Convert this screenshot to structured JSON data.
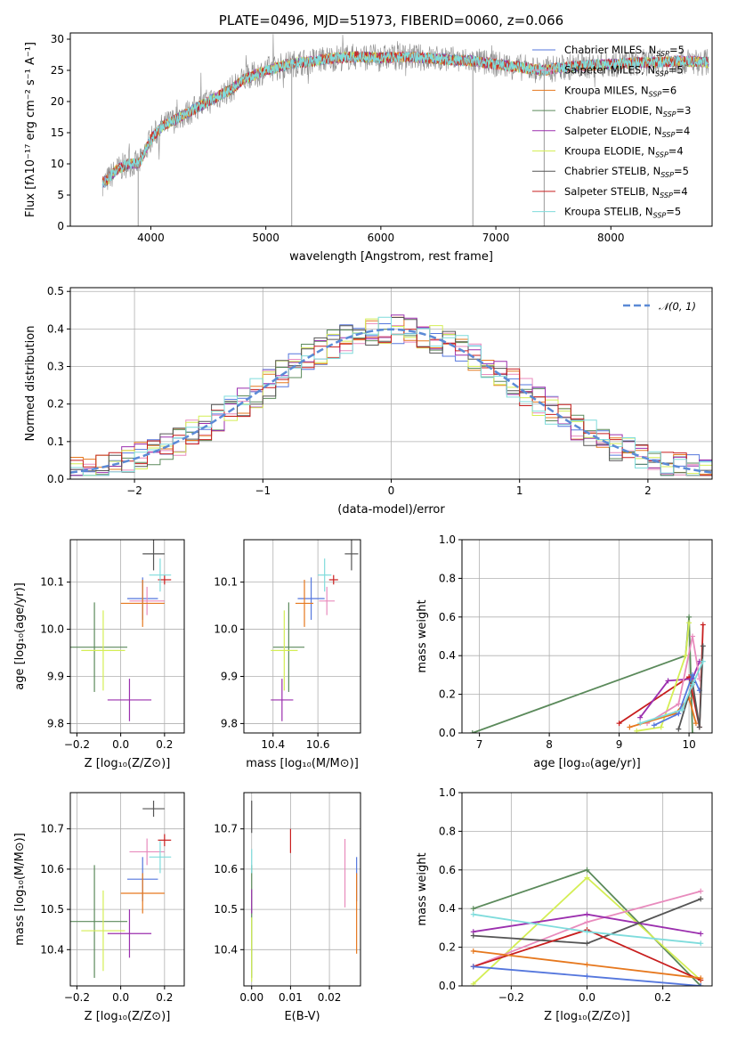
{
  "colors": {
    "Chabrier MILES": "#5577dd",
    "Salpeter MILES": "#e88bbd",
    "Kroupa MILES": "#e6781e",
    "Chabrier ELODIE": "#5b8a5b",
    "Salpeter ELODIE": "#9b2fae",
    "Kroupa ELODIE": "#d4ee55",
    "Chabrier STELIB": "#555555",
    "Salpeter STELIB": "#c81e1e",
    "Kroupa STELIB": "#7fdcdc",
    "gauss": "#5b8ad6"
  },
  "chart_data": [
    {
      "id": "spectrum",
      "type": "line",
      "title": "PLATE=0496, MJD=51973, FIBERID=0060, z=0.066",
      "xlabel": "wavelength [Angstrom, rest frame]",
      "ylabel": "Flux [fλ10⁻¹⁷ erg cm⁻² s⁻¹ A⁻¹]",
      "xlim": [
        3300,
        8880
      ],
      "ylim": [
        0,
        31
      ],
      "xticks": [
        4000,
        5000,
        6000,
        7000,
        8000
      ],
      "yticks": [
        0,
        5,
        10,
        15,
        20,
        25,
        30
      ],
      "grid": false,
      "legend_position": "top-right",
      "legend": [
        {
          "series": "Chabrier MILES",
          "text": "Chabrier MILES, N",
          "sub": "SSP",
          "tail": "=5"
        },
        {
          "series": "Salpeter MILES",
          "text": "Salpeter MILES, N",
          "sub": "SSP",
          "tail": "=5"
        },
        {
          "series": "Kroupa MILES",
          "text": "Kroupa MILES, N",
          "sub": "SSP",
          "tail": "=6"
        },
        {
          "series": "Chabrier ELODIE",
          "text": "Chabrier ELODIE, N",
          "sub": "SSP",
          "tail": "=3"
        },
        {
          "series": "Salpeter ELODIE",
          "text": "Salpeter ELODIE, N",
          "sub": "SSP",
          "tail": "=4"
        },
        {
          "series": "Kroupa ELODIE",
          "text": "Kroupa ELODIE, N",
          "sub": "SSP",
          "tail": "=4"
        },
        {
          "series": "Chabrier STELIB",
          "text": "Chabrier STELIB, N",
          "sub": "SSP",
          "tail": "=5"
        },
        {
          "series": "Salpeter STELIB",
          "text": "Salpeter STELIB, N",
          "sub": "SSP",
          "tail": "=4"
        },
        {
          "series": "Kroupa STELIB",
          "text": "Kroupa STELIB, N",
          "sub": "SSP",
          "tail": "=5"
        }
      ],
      "continuum": {
        "x": [
          3600,
          3700,
          3800,
          3900,
          4000,
          4100,
          4200,
          4300,
          4400,
          4500,
          4600,
          4700,
          4800,
          5000,
          5200,
          5400,
          5600,
          5800,
          6000,
          6200,
          6400,
          6600,
          6800,
          7000,
          7200,
          7400,
          7600,
          7800,
          8000,
          8200,
          8400,
          8600,
          8800
        ],
        "y": [
          7,
          9,
          10,
          10,
          14,
          16,
          17,
          18,
          19,
          20,
          21,
          22,
          23.5,
          25,
          26,
          26.5,
          27,
          27.2,
          27,
          27.2,
          27,
          26.7,
          26.5,
          26,
          25.5,
          25,
          25.5,
          25.8,
          26,
          26.2,
          26.3,
          26.5,
          26.3
        ]
      },
      "spikes": [
        {
          "x": 3890,
          "y": 0
        },
        {
          "x": 5225,
          "y": 0
        },
        {
          "x": 6800,
          "y": 0
        },
        {
          "x": 7420,
          "y": 0
        }
      ]
    },
    {
      "id": "residuals",
      "type": "histogram",
      "xlabel": "(data-model)/error",
      "ylabel": "Normed distribution",
      "xlim": [
        -2.5,
        2.5
      ],
      "ylim": [
        0,
        0.51
      ],
      "xticks": [
        -2,
        -1,
        0,
        1,
        2
      ],
      "xticklabels": [
        "−2",
        "−1",
        "0",
        "1",
        "2"
      ],
      "yticks": [
        0.0,
        0.1,
        0.2,
        0.3,
        0.4,
        0.5
      ],
      "grid": true,
      "legend_position": "top-right",
      "legend": [
        {
          "series": "gauss",
          "text": "𝒩(0, 1)"
        }
      ],
      "bin_width": 0.1
    },
    {
      "id": "age-vs-Z",
      "type": "scatter",
      "xlabel": "Z [log₁₀(Z/Z⊙)]",
      "ylabel": "age  [log₁₀(age/yr)]",
      "xlim": [
        -0.23,
        0.29
      ],
      "ylim": [
        9.78,
        10.19
      ],
      "xticks": [
        -0.2,
        0.0,
        0.2
      ],
      "xticklabels": [
        "−0.2",
        "0.0",
        "0.2"
      ],
      "yticks": [
        9.8,
        9.9,
        10.0,
        10.1
      ],
      "grid": true,
      "points": [
        {
          "series": "Chabrier MILES",
          "x": 0.1,
          "xerr": 0.07,
          "y": 10.065,
          "yerr": 0.045
        },
        {
          "series": "Salpeter MILES",
          "x": 0.12,
          "xerr": 0.08,
          "y": 10.06,
          "yerr": 0.03
        },
        {
          "series": "Kroupa MILES",
          "x": 0.1,
          "xerr": 0.1,
          "y": 10.055,
          "yerr": 0.05
        },
        {
          "series": "Chabrier ELODIE",
          "x": -0.12,
          "xerr": 0.15,
          "y": 9.962,
          "yerr": 0.095
        },
        {
          "series": "Salpeter ELODIE",
          "x": 0.04,
          "xerr": 0.1,
          "y": 9.85,
          "yerr": 0.045
        },
        {
          "series": "Kroupa ELODIE",
          "x": -0.08,
          "xerr": 0.1,
          "y": 9.955,
          "yerr": 0.085
        },
        {
          "series": "Chabrier STELIB",
          "x": 0.15,
          "xerr": 0.05,
          "y": 10.16,
          "yerr": 0.035
        },
        {
          "series": "Salpeter STELIB",
          "x": 0.2,
          "xerr": 0.03,
          "y": 10.105,
          "yerr": 0.01
        },
        {
          "series": "Kroupa STELIB",
          "x": 0.18,
          "xerr": 0.05,
          "y": 10.115,
          "yerr": 0.035
        }
      ]
    },
    {
      "id": "age-vs-mass",
      "type": "scatter",
      "xlabel": "mass [log₁₀(M/M⊙)]",
      "ylabel": "",
      "xlim": [
        10.27,
        10.79
      ],
      "ylim": [
        9.78,
        10.19
      ],
      "xticks": [
        10.4,
        10.6
      ],
      "xticklabels": [
        "10.4",
        "10.6"
      ],
      "yticks": [
        9.8,
        9.9,
        10.0,
        10.1
      ],
      "grid": true,
      "points": [
        {
          "series": "Chabrier MILES",
          "x": 10.57,
          "xerr": 0.06,
          "y": 10.065,
          "yerr": 0.045
        },
        {
          "series": "Salpeter MILES",
          "x": 10.64,
          "xerr": 0.035,
          "y": 10.06,
          "yerr": 0.03
        },
        {
          "series": "Kroupa MILES",
          "x": 10.54,
          "xerr": 0.04,
          "y": 10.055,
          "yerr": 0.05
        },
        {
          "series": "Chabrier ELODIE",
          "x": 10.47,
          "xerr": 0.07,
          "y": 9.962,
          "yerr": 0.095
        },
        {
          "series": "Salpeter ELODIE",
          "x": 10.44,
          "xerr": 0.05,
          "y": 9.85,
          "yerr": 0.045
        },
        {
          "series": "Kroupa ELODIE",
          "x": 10.45,
          "xerr": 0.06,
          "y": 9.955,
          "yerr": 0.085
        },
        {
          "series": "Chabrier STELIB",
          "x": 10.75,
          "xerr": 0.03,
          "y": 10.16,
          "yerr": 0.035
        },
        {
          "series": "Salpeter STELIB",
          "x": 10.67,
          "xerr": 0.02,
          "y": 10.105,
          "yerr": 0.01
        },
        {
          "series": "Kroupa STELIB",
          "x": 10.63,
          "xerr": 0.03,
          "y": 10.115,
          "yerr": 0.035
        }
      ]
    },
    {
      "id": "weight-vs-age",
      "type": "line",
      "xlabel": "age  [log₁₀(age/yr)]",
      "ylabel": "mass weight",
      "xlim": [
        6.75,
        10.33
      ],
      "ylim": [
        0,
        1
      ],
      "xticks": [
        7,
        8,
        9,
        10
      ],
      "yticks": [
        0.0,
        0.2,
        0.4,
        0.6,
        0.8,
        1.0
      ],
      "grid": true,
      "series": [
        {
          "name": "Chabrier ELODIE",
          "x": [
            6.9,
            9.95,
            10.0,
            10.05
          ],
          "y": [
            0.0,
            0.4,
            0.6,
            0.0
          ]
        },
        {
          "name": "Salpeter STELIB",
          "x": [
            9.0,
            10.0,
            10.15,
            10.2
          ],
          "y": [
            0.05,
            0.29,
            0.03,
            0.56
          ]
        },
        {
          "name": "Salpeter ELODIE",
          "x": [
            9.3,
            9.7,
            10.05,
            10.15
          ],
          "y": [
            0.08,
            0.27,
            0.28,
            0.37
          ]
        },
        {
          "name": "Kroupa ELODIE",
          "x": [
            9.25,
            9.6,
            9.95,
            10.0
          ],
          "y": [
            0.01,
            0.03,
            0.4,
            0.57
          ]
        },
        {
          "name": "Salpeter MILES",
          "x": [
            9.4,
            9.85,
            10.05,
            10.15
          ],
          "y": [
            0.05,
            0.15,
            0.5,
            0.28
          ]
        },
        {
          "name": "Kroupa MILES",
          "x": [
            9.15,
            9.8,
            10.0,
            10.1
          ],
          "y": [
            0.03,
            0.1,
            0.18,
            0.05
          ]
        },
        {
          "name": "Chabrier MILES",
          "x": [
            9.5,
            9.85,
            10.05,
            10.15
          ],
          "y": [
            0.04,
            0.1,
            0.3,
            0.22
          ]
        },
        {
          "name": "Chabrier STELIB",
          "x": [
            9.85,
            10.05,
            10.15,
            10.2
          ],
          "y": [
            0.02,
            0.26,
            0.03,
            0.45
          ]
        },
        {
          "name": "Kroupa STELIB",
          "x": [
            9.3,
            9.9,
            10.05,
            10.2
          ],
          "y": [
            0.05,
            0.12,
            0.25,
            0.37
          ]
        }
      ]
    },
    {
      "id": "mass-vs-Z",
      "type": "scatter",
      "xlabel": "Z [log₁₀(Z/Z⊙)]",
      "ylabel": "mass [log₁₀(M/M⊙)]",
      "xlim": [
        -0.23,
        0.29
      ],
      "ylim": [
        10.31,
        10.79
      ],
      "xticks": [
        -0.2,
        0.0,
        0.2
      ],
      "xticklabels": [
        "−0.2",
        "0.0",
        "0.2"
      ],
      "yticks": [
        10.4,
        10.5,
        10.6,
        10.7
      ],
      "grid": true,
      "points": [
        {
          "series": "Chabrier MILES",
          "x": 0.1,
          "xerr": 0.07,
          "y": 10.575,
          "yerr": 0.055
        },
        {
          "series": "Salpeter MILES",
          "x": 0.12,
          "xerr": 0.08,
          "y": 10.643,
          "yerr": 0.033
        },
        {
          "series": "Kroupa MILES",
          "x": 0.1,
          "xerr": 0.1,
          "y": 10.54,
          "yerr": 0.05
        },
        {
          "series": "Chabrier ELODIE",
          "x": -0.12,
          "xerr": 0.15,
          "y": 10.47,
          "yerr": 0.14
        },
        {
          "series": "Salpeter ELODIE",
          "x": 0.04,
          "xerr": 0.1,
          "y": 10.44,
          "yerr": 0.06
        },
        {
          "series": "Kroupa ELODIE",
          "x": -0.08,
          "xerr": 0.1,
          "y": 10.447,
          "yerr": 0.1
        },
        {
          "series": "Chabrier STELIB",
          "x": 0.15,
          "xerr": 0.05,
          "y": 10.75,
          "yerr": 0.02
        },
        {
          "series": "Salpeter STELIB",
          "x": 0.2,
          "xerr": 0.03,
          "y": 10.672,
          "yerr": 0.015
        },
        {
          "series": "Kroupa STELIB",
          "x": 0.18,
          "xerr": 0.05,
          "y": 10.63,
          "yerr": 0.04
        }
      ]
    },
    {
      "id": "mass-vs-ebv",
      "type": "scatter",
      "xlabel": "E(B-V)",
      "ylabel": "",
      "xlim": [
        -0.002,
        0.028
      ],
      "ylim": [
        10.31,
        10.79
      ],
      "xticks": [
        0.0,
        0.01,
        0.02
      ],
      "xticklabels": [
        "0.00",
        "0.01",
        "0.02"
      ],
      "yticks": [
        10.4,
        10.5,
        10.6,
        10.7
      ],
      "grid": true,
      "points": [
        {
          "series": "Chabrier MILES",
          "x": 0.027,
          "xerr": 0.0,
          "y": 10.575,
          "yerr": 0.055
        },
        {
          "series": "Salpeter MILES",
          "x": 0.024,
          "xerr": 0.0,
          "y": 10.59,
          "yerr": 0.085
        },
        {
          "series": "Kroupa MILES",
          "x": 0.027,
          "xerr": 0.0,
          "y": 10.49,
          "yerr": 0.1
        },
        {
          "series": "Chabrier ELODIE",
          "x": 0.0,
          "xerr": 0.0,
          "y": 10.47,
          "yerr": 0.14
        },
        {
          "series": "Salpeter ELODIE",
          "x": 0.0,
          "xerr": 0.0,
          "y": 10.52,
          "yerr": 0.03
        },
        {
          "series": "Kroupa ELODIE",
          "x": 0.0,
          "xerr": 0.0,
          "y": 10.4,
          "yerr": 0.08
        },
        {
          "series": "Chabrier STELIB",
          "x": 0.0,
          "xerr": 0.0,
          "y": 10.73,
          "yerr": 0.04
        },
        {
          "series": "Salpeter STELIB",
          "x": 0.01,
          "xerr": 0.0,
          "y": 10.67,
          "yerr": 0.03
        },
        {
          "series": "Kroupa STELIB",
          "x": 0.0,
          "xerr": 0.0,
          "y": 10.62,
          "yerr": 0.03
        }
      ]
    },
    {
      "id": "weight-vs-Z",
      "type": "line",
      "xlabel": "Z [log₁₀(Z/Z⊙)]",
      "ylabel": "mass weight",
      "xlim": [
        -0.33,
        0.33
      ],
      "ylim": [
        0,
        1
      ],
      "xticks": [
        -0.2,
        0.0,
        0.2
      ],
      "xticklabels": [
        "−0.2",
        "0.0",
        "0.2"
      ],
      "yticks": [
        0.0,
        0.2,
        0.4,
        0.6,
        0.8,
        1.0
      ],
      "grid": true,
      "series": [
        {
          "name": "Chabrier ELODIE",
          "x": [
            -0.3,
            0.0,
            0.3
          ],
          "y": [
            0.4,
            0.6,
            0.0
          ]
        },
        {
          "name": "Kroupa ELODIE",
          "x": [
            -0.3,
            0.0,
            0.3
          ],
          "y": [
            0.01,
            0.56,
            0.03
          ]
        },
        {
          "name": "Salpeter MILES",
          "x": [
            -0.3,
            0.0,
            0.3
          ],
          "y": [
            0.1,
            0.33,
            0.49
          ]
        },
        {
          "name": "Salpeter ELODIE",
          "x": [
            -0.3,
            0.0,
            0.3
          ],
          "y": [
            0.28,
            0.37,
            0.27
          ]
        },
        {
          "name": "Chabrier STELIB",
          "x": [
            -0.3,
            0.0,
            0.3
          ],
          "y": [
            0.26,
            0.22,
            0.45
          ]
        },
        {
          "name": "Salpeter STELIB",
          "x": [
            -0.3,
            0.0,
            0.3
          ],
          "y": [
            0.1,
            0.29,
            0.03
          ]
        },
        {
          "name": "Kroupa STELIB",
          "x": [
            -0.3,
            0.0,
            0.3
          ],
          "y": [
            0.37,
            0.28,
            0.22
          ]
        },
        {
          "name": "Kroupa MILES",
          "x": [
            -0.3,
            0.0,
            0.3
          ],
          "y": [
            0.18,
            0.11,
            0.04
          ]
        },
        {
          "name": "Chabrier MILES",
          "x": [
            -0.3,
            0.0,
            0.3
          ],
          "y": [
            0.1,
            0.05,
            0.0
          ]
        }
      ]
    }
  ]
}
